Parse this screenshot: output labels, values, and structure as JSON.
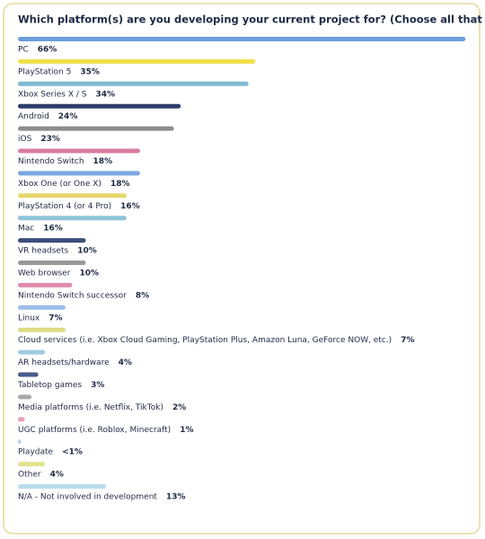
{
  "chart_data": {
    "type": "bar",
    "title": "Which platform(s) are you developing your current project for? (Choose all that apply)",
    "categories": [
      "PC",
      "PlayStation 5",
      "Xbox Series X / S",
      "Android",
      "iOS",
      "Nintendo Switch",
      "Xbox One (or One X)",
      "PlayStation 4 (or 4 Pro)",
      "Mac",
      "VR headsets",
      "Web browser",
      "Nintendo Switch successor",
      "Linux",
      "Cloud services (i.e. Xbox Cloud Gaming, PlayStation Plus, Amazon Luna, GeForce NOW, etc.)",
      "AR headsets/hardware",
      "Tabletop games",
      "Media platforms (i.e. Netflix, TikTok)",
      "UGC platforms (i.e. Roblox, Minecraft)",
      "Playdate",
      "Other",
      "N/A - Not involved in development"
    ],
    "values": [
      66,
      35,
      34,
      24,
      23,
      18,
      18,
      16,
      16,
      10,
      10,
      8,
      7,
      7,
      4,
      3,
      2,
      1,
      0.5,
      4,
      13
    ],
    "value_labels": [
      "66%",
      "35%",
      "34%",
      "24%",
      "23%",
      "18%",
      "18%",
      "16%",
      "16%",
      "10%",
      "10%",
      "8%",
      "7%",
      "7%",
      "4%",
      "3%",
      "2%",
      "1%",
      "<1%",
      "4%",
      "13%"
    ],
    "colors": [
      "#6d9fdc",
      "#efe04c",
      "#80b9d4",
      "#2b3d6a",
      "#8d8d8d",
      "#d97ba1",
      "#7aa7e0",
      "#e6d66c",
      "#8ec3da",
      "#3c4d7a",
      "#999999",
      "#df8cab",
      "#9dbde9",
      "#dedb82",
      "#9fcbe1",
      "#4a5a8c",
      "#a8a8a8",
      "#e8a2ba",
      "#bcd2f0",
      "#e3e38f",
      "#b9dcec"
    ]
  }
}
